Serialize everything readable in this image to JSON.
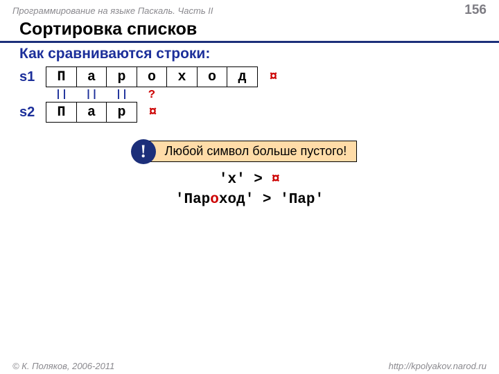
{
  "header": {
    "course": "Программирование на языке Паскаль. Часть II",
    "page": "156"
  },
  "title": "Сортировка списков",
  "subtitle": "Как сравниваются строки:",
  "s1": {
    "label": "s1",
    "chars": [
      "П",
      "а",
      "р",
      "о",
      "х",
      "о",
      "д"
    ],
    "term": "¤"
  },
  "ops": {
    "eq": "||",
    "q": "?"
  },
  "s2": {
    "label": "s2",
    "chars": [
      "П",
      "а",
      "р"
    ],
    "term": "¤"
  },
  "callout": {
    "badge": "!",
    "text": "Любой символ больше пустого!"
  },
  "code": {
    "l1a": "'х' > ",
    "l1b": "¤",
    "l2a": "'Пар",
    "l2b": "о",
    "l2c": "ход' > 'Пар'"
  },
  "footer": {
    "copyright": "© К. Поляков, 2006-2011",
    "url": "http://kpolyakov.narod.ru"
  }
}
